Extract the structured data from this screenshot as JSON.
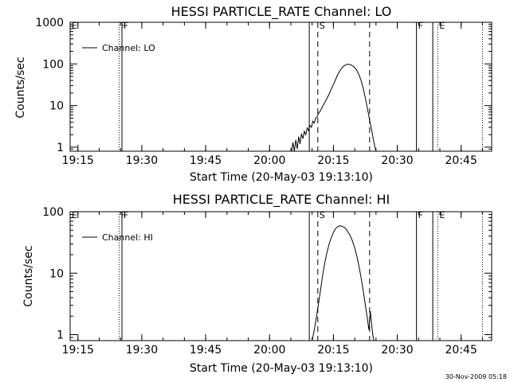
{
  "footer_timestamp": "30-Nov-2009 05:18",
  "chart_data": [
    {
      "type": "line",
      "title": "HESSI PARTICLE_RATE Channel: LO",
      "xlabel": "Start Time (20-May-03 19:13:10)",
      "ylabel": "Counts/sec",
      "yscale": "log",
      "xlim": [
        "19:13:10",
        "20:52:10"
      ],
      "ylim": [
        0.8,
        1000
      ],
      "x_ticks": [
        "19:15",
        "19:30",
        "19:45",
        "20:00",
        "20:15",
        "20:30",
        "20:45"
      ],
      "y_ticks": [
        "1",
        "10",
        "100",
        "1000"
      ],
      "legend": {
        "label": "Channel: LO",
        "placement": "top-left"
      },
      "flags": [
        {
          "label": "E",
          "time": "19:13:10",
          "style": "none"
        },
        {
          "label": "F",
          "time": "19:24:40",
          "style": "dotted"
        },
        {
          "label": "F",
          "time": "19:25:20",
          "style": "solid"
        },
        {
          "label": "",
          "time": "20:09:20",
          "style": "solid"
        },
        {
          "label": "S",
          "time": "20:11:20",
          "style": "dashed"
        },
        {
          "label": "",
          "time": "20:23:30",
          "style": "dashed"
        },
        {
          "label": "F",
          "time": "20:34:30",
          "style": "solid"
        },
        {
          "label": "",
          "time": "20:38:20",
          "style": "solid"
        },
        {
          "label": "E",
          "time": "20:39:30",
          "style": "dotted"
        },
        {
          "label": "",
          "time": "20:50:00",
          "style": "dotted"
        }
      ],
      "series": [
        {
          "name": "Channel: LO",
          "points": [
            [
              "20:05:10",
              0.8
            ],
            [
              "20:05:30",
              1.3
            ],
            [
              "20:05:50",
              0.8
            ],
            [
              "20:06:10",
              1.5
            ],
            [
              "20:06:30",
              0.9
            ],
            [
              "20:06:50",
              1.8
            ],
            [
              "20:07:10",
              1.2
            ],
            [
              "20:07:30",
              2.1
            ],
            [
              "20:07:50",
              1.6
            ],
            [
              "20:08:10",
              2.4
            ],
            [
              "20:08:30",
              2.0
            ],
            [
              "20:08:50",
              2.9
            ],
            [
              "20:09:10",
              2.5
            ],
            [
              "20:09:30",
              3.3
            ],
            [
              "20:09:50",
              3.0
            ],
            [
              "20:10:10",
              4.2
            ],
            [
              "20:10:30",
              3.8
            ],
            [
              "20:10:50",
              5.0
            ],
            [
              "20:11:10",
              5.3
            ],
            [
              "20:11:30",
              6.5
            ],
            [
              "20:11:50",
              7.2
            ],
            [
              "20:12:10",
              8.3
            ],
            [
              "20:12:30",
              9.7
            ],
            [
              "20:13:00",
              12
            ],
            [
              "20:13:30",
              15
            ],
            [
              "20:14:00",
              19
            ],
            [
              "20:14:30",
              25
            ],
            [
              "20:15:00",
              32
            ],
            [
              "20:15:30",
              42
            ],
            [
              "20:16:00",
              55
            ],
            [
              "20:16:30",
              68
            ],
            [
              "20:17:00",
              80
            ],
            [
              "20:17:30",
              90
            ],
            [
              "20:18:00",
              96
            ],
            [
              "20:18:30",
              98
            ],
            [
              "20:19:00",
              96
            ],
            [
              "20:19:30",
              90
            ],
            [
              "20:20:00",
              82
            ],
            [
              "20:20:30",
              70
            ],
            [
              "20:21:00",
              55
            ],
            [
              "20:21:30",
              40
            ],
            [
              "20:22:00",
              26
            ],
            [
              "20:22:30",
              15
            ],
            [
              "20:23:00",
              8.5
            ],
            [
              "20:23:30",
              4.5
            ],
            [
              "20:24:00",
              2.5
            ],
            [
              "20:24:20",
              1.6
            ],
            [
              "20:24:40",
              1.1
            ],
            [
              "20:25:00",
              0.8
            ]
          ]
        }
      ]
    },
    {
      "type": "line",
      "title": "HESSI PARTICLE_RATE Channel: HI",
      "xlabel": "Start Time (20-May-03 19:13:10)",
      "ylabel": "Counts/sec",
      "yscale": "log",
      "xlim": [
        "19:13:10",
        "20:52:10"
      ],
      "ylim": [
        0.8,
        100
      ],
      "x_ticks": [
        "19:15",
        "19:30",
        "19:45",
        "20:00",
        "20:15",
        "20:30",
        "20:45"
      ],
      "y_ticks": [
        "1",
        "10",
        "100"
      ],
      "legend": {
        "label": "Channel: HI",
        "placement": "top-left"
      },
      "flags": [
        {
          "label": "E",
          "time": "19:13:10",
          "style": "none"
        },
        {
          "label": "F",
          "time": "19:24:40",
          "style": "dotted"
        },
        {
          "label": "F",
          "time": "19:25:20",
          "style": "solid"
        },
        {
          "label": "",
          "time": "20:09:20",
          "style": "solid"
        },
        {
          "label": "S",
          "time": "20:11:20",
          "style": "dashed"
        },
        {
          "label": "",
          "time": "20:23:30",
          "style": "dashed"
        },
        {
          "label": "F",
          "time": "20:34:30",
          "style": "solid"
        },
        {
          "label": "",
          "time": "20:38:20",
          "style": "solid"
        },
        {
          "label": "E",
          "time": "20:39:30",
          "style": "dotted"
        },
        {
          "label": "",
          "time": "20:50:00",
          "style": "dotted"
        }
      ],
      "series": [
        {
          "name": "Channel: HI",
          "points": [
            [
              "20:10:00",
              0.8
            ],
            [
              "20:10:30",
              1.2
            ],
            [
              "20:11:00",
              1.9
            ],
            [
              "20:11:30",
              3.2
            ],
            [
              "20:12:00",
              5.5
            ],
            [
              "20:12:30",
              9.5
            ],
            [
              "20:13:00",
              15
            ],
            [
              "20:13:30",
              22
            ],
            [
              "20:14:00",
              30
            ],
            [
              "20:14:30",
              38
            ],
            [
              "20:15:00",
              46
            ],
            [
              "20:15:30",
              53
            ],
            [
              "20:16:00",
              57
            ],
            [
              "20:16:30",
              59
            ],
            [
              "20:17:00",
              58
            ],
            [
              "20:17:30",
              56
            ],
            [
              "20:18:00",
              52
            ],
            [
              "20:18:30",
              46
            ],
            [
              "20:19:00",
              40
            ],
            [
              "20:19:30",
              33
            ],
            [
              "20:20:00",
              26
            ],
            [
              "20:20:30",
              19
            ],
            [
              "20:21:00",
              13
            ],
            [
              "20:21:30",
              8.5
            ],
            [
              "20:22:00",
              5.2
            ],
            [
              "20:22:30",
              3.0
            ],
            [
              "20:23:00",
              1.8
            ],
            [
              "20:23:20",
              1.2
            ],
            [
              "20:23:40",
              2.4
            ],
            [
              "20:24:00",
              1.4
            ],
            [
              "20:24:20",
              0.9
            ],
            [
              "20:24:30",
              0.8
            ]
          ]
        }
      ]
    }
  ]
}
